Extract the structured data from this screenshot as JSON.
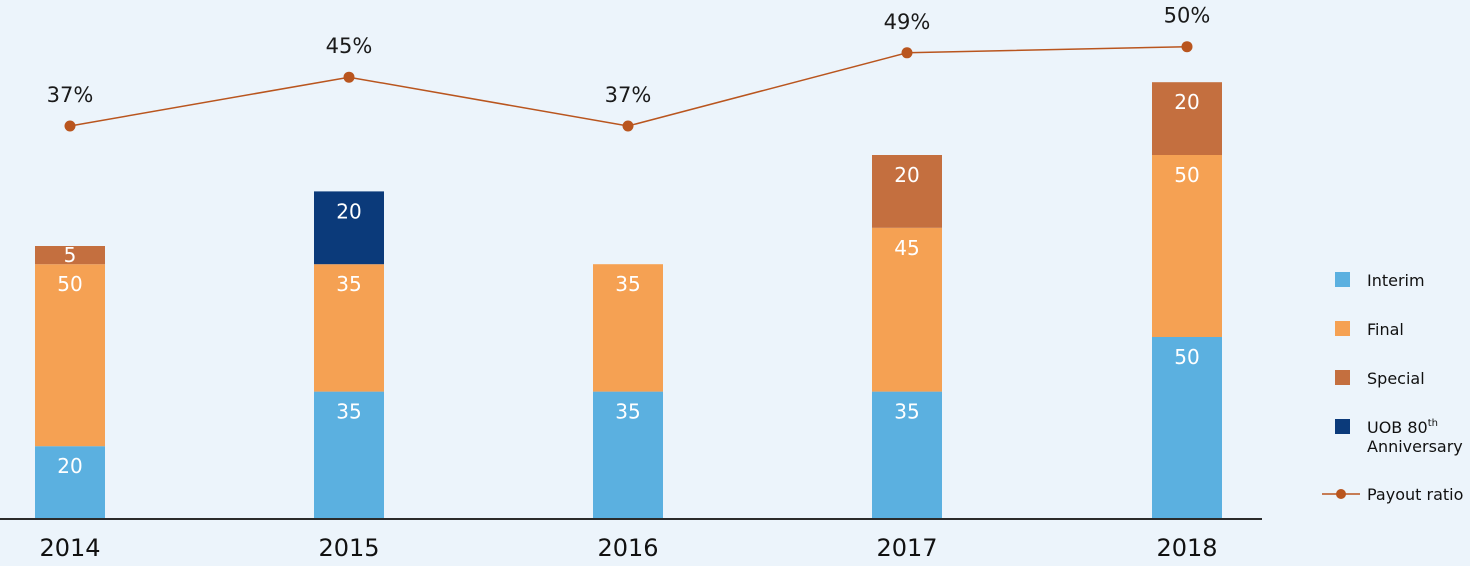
{
  "chart_data": {
    "type": "bar",
    "stacked": true,
    "categories": [
      "2014",
      "2015",
      "2016",
      "2017",
      "2018"
    ],
    "series": [
      {
        "name": "Interim",
        "key": "interim",
        "color": "#5bb0e0",
        "values": [
          20,
          35,
          35,
          35,
          50
        ]
      },
      {
        "name": "Final",
        "key": "final",
        "color": "#f5a153",
        "values": [
          50,
          35,
          35,
          45,
          50
        ]
      },
      {
        "name": "Special",
        "key": "special",
        "color": "#c46f3f",
        "values": [
          5,
          null,
          null,
          20,
          20
        ]
      },
      {
        "name": "UOB 80",
        "name_sup": "th",
        "name_line2": "Anniversary",
        "key": "uob-80th-anniversary",
        "color": "#0b3a7a",
        "values": [
          null,
          20,
          null,
          null,
          null
        ]
      }
    ],
    "line_series": {
      "name": "Payout ratio",
      "color": "#b9551e",
      "values": [
        37,
        45,
        37,
        49,
        50
      ],
      "labels": [
        "37%",
        "45%",
        "37%",
        "49%",
        "50%"
      ]
    },
    "ylim": [
      0,
      145
    ],
    "line_ylim": [
      0,
      60
    ],
    "legend_position": "right",
    "grid": false,
    "title": "",
    "xlabel": "",
    "ylabel": ""
  }
}
